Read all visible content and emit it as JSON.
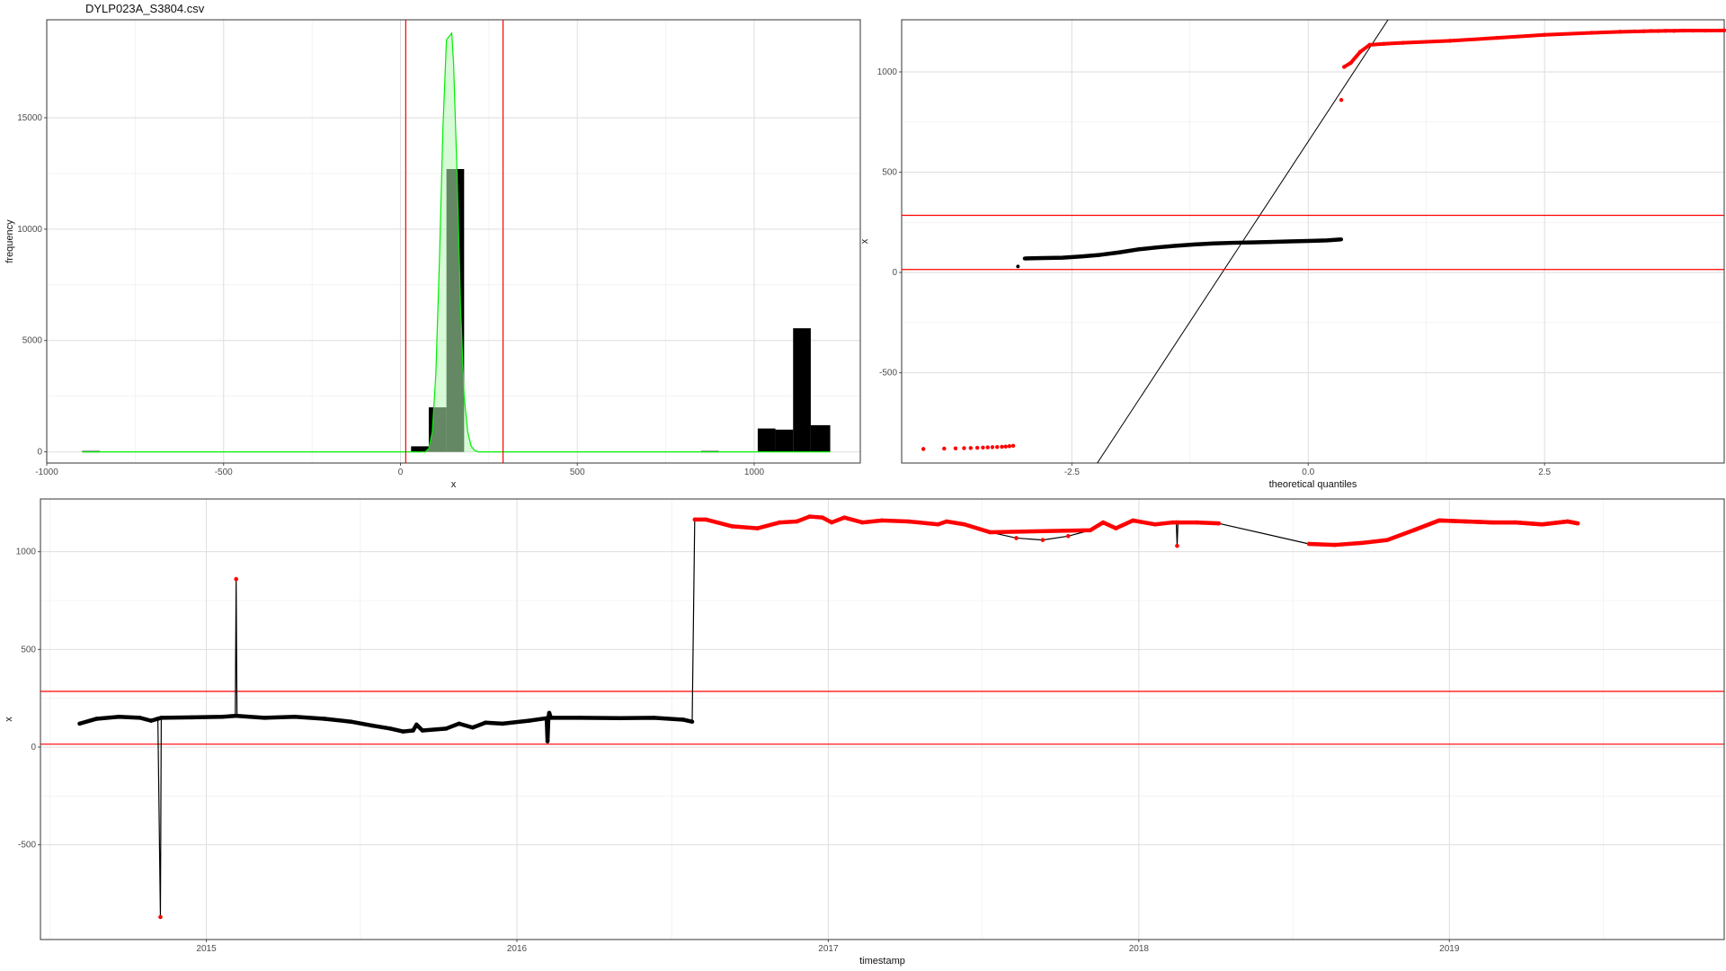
{
  "figure_title": "DYLP023A_S3804.csv",
  "colors": {
    "threshold": "#ff0000",
    "outlier": "#ff0000",
    "normal": "#000000",
    "density_line": "#00ee00",
    "density_fill": "#b6f5b6",
    "grid": "#dedede",
    "panel_border": "#333333"
  },
  "chart_data": [
    {
      "id": "histogram",
      "type": "bar",
      "title": "",
      "xlabel": "x",
      "ylabel": "frequency",
      "xlim": [
        -1000,
        1300
      ],
      "ylim": [
        -500,
        19400
      ],
      "x_ticks": [
        -1000,
        -500,
        0,
        500,
        1000
      ],
      "y_ticks": [
        0,
        5000,
        10000,
        15000
      ],
      "vlines": [
        15,
        290
      ],
      "bins": [
        {
          "x0": -900,
          "x1": -850,
          "count": 40
        },
        {
          "x0": 30,
          "x1": 80,
          "count": 250
        },
        {
          "x0": 80,
          "x1": 130,
          "count": 2000
        },
        {
          "x0": 130,
          "x1": 180,
          "count": 12700
        },
        {
          "x0": 850,
          "x1": 900,
          "count": 40
        },
        {
          "x0": 1010,
          "x1": 1060,
          "count": 1050
        },
        {
          "x0": 1060,
          "x1": 1110,
          "count": 1000
        },
        {
          "x0": 1110,
          "x1": 1160,
          "count": 5550
        },
        {
          "x0": 1160,
          "x1": 1215,
          "count": 1200
        }
      ],
      "density": [
        [
          -900,
          0
        ],
        [
          70,
          0
        ],
        [
          80,
          150
        ],
        [
          90,
          900
        ],
        [
          100,
          3500
        ],
        [
          110,
          8500
        ],
        [
          120,
          14500
        ],
        [
          130,
          18500
        ],
        [
          145,
          18800
        ],
        [
          150,
          17500
        ],
        [
          160,
          12500
        ],
        [
          170,
          6500
        ],
        [
          180,
          2500
        ],
        [
          190,
          900
        ],
        [
          200,
          250
        ],
        [
          210,
          60
        ],
        [
          220,
          0
        ],
        [
          1215,
          0
        ]
      ]
    },
    {
      "id": "qq-plot",
      "type": "scatter",
      "title": "",
      "xlabel": "theoretical quantiles",
      "ylabel": "x",
      "xlim": [
        -4.3,
        4.4
      ],
      "ylim": [
        -950,
        1260
      ],
      "x_ticks": [
        -2.5,
        0.0,
        2.5
      ],
      "x_tick_labels": [
        "-2.5",
        "0.0",
        "2.5"
      ],
      "y_ticks": [
        -500,
        0,
        500,
        1000
      ],
      "hlines": [
        15,
        285
      ],
      "reference_line": [
        [
          -2.3,
          -1000
        ],
        [
          0.9,
          1300
        ]
      ],
      "normal_series": [
        [
          -3.07,
          30
        ],
        [
          -3.0,
          70
        ],
        [
          -2.8,
          72
        ],
        [
          -2.6,
          74
        ],
        [
          -2.4,
          80
        ],
        [
          -2.2,
          88
        ],
        [
          -2.0,
          100
        ],
        [
          -1.8,
          115
        ],
        [
          -1.6,
          125
        ],
        [
          -1.4,
          133
        ],
        [
          -1.2,
          140
        ],
        [
          -1.0,
          145
        ],
        [
          -0.8,
          148
        ],
        [
          -0.6,
          150
        ],
        [
          -0.4,
          152
        ],
        [
          -0.2,
          155
        ],
        [
          0.0,
          157
        ],
        [
          0.2,
          160
        ],
        [
          0.35,
          165
        ]
      ],
      "outlier_series": [
        [
          -4.07,
          -880
        ],
        [
          -3.85,
          -878
        ],
        [
          -3.73,
          -877
        ],
        [
          -3.64,
          -876
        ],
        [
          -3.57,
          -875
        ],
        [
          -3.5,
          -874
        ],
        [
          -3.44,
          -873
        ],
        [
          -3.39,
          -872
        ],
        [
          -3.34,
          -871
        ],
        [
          -3.29,
          -870
        ],
        [
          -3.24,
          -869
        ],
        [
          -3.2,
          -868
        ],
        [
          -3.16,
          -866
        ],
        [
          -3.12,
          -864
        ],
        [
          0.35,
          860
        ],
        [
          0.38,
          1025
        ],
        [
          0.45,
          1045
        ],
        [
          0.55,
          1100
        ],
        [
          0.65,
          1135
        ],
        [
          0.8,
          1140
        ],
        [
          1.0,
          1145
        ],
        [
          1.5,
          1155
        ],
        [
          2.0,
          1170
        ],
        [
          2.5,
          1185
        ],
        [
          3.0,
          1195
        ],
        [
          3.3,
          1200
        ],
        [
          3.45,
          1202
        ],
        [
          3.55,
          1203
        ],
        [
          3.63,
          1204
        ],
        [
          3.7,
          1204
        ],
        [
          3.78,
          1205
        ],
        [
          3.87,
          1205
        ],
        [
          3.97,
          1206
        ],
        [
          4.07,
          1206
        ],
        [
          4.2,
          1206
        ],
        [
          4.4,
          1207
        ]
      ]
    },
    {
      "id": "time-series",
      "type": "line",
      "title": "",
      "xlabel": "timestamp",
      "ylabel": "x",
      "xlim": [
        "2014-06-20",
        "2019-11-20"
      ],
      "ylim": [
        -985,
        1270
      ],
      "x_ticks": [
        "2015-01-01",
        "2016-01-01",
        "2017-01-01",
        "2018-01-01",
        "2019-01-01"
      ],
      "x_tick_labels": [
        "2015",
        "2016",
        "2017",
        "2018",
        "2019"
      ],
      "y_ticks": [
        -500,
        0,
        500,
        1000
      ],
      "hlines": [
        15,
        285
      ],
      "series": [
        [
          "2014-08-05",
          120
        ],
        [
          "2014-08-25",
          145
        ],
        [
          "2014-09-20",
          155
        ],
        [
          "2014-10-15",
          150
        ],
        [
          "2014-10-28",
          135
        ],
        [
          "2014-11-05",
          145
        ],
        [
          "2014-11-08",
          -870
        ],
        [
          "2014-11-09",
          150
        ],
        [
          "2014-12-15",
          152
        ],
        [
          "2015-01-20",
          155
        ],
        [
          "2015-02-04",
          160
        ],
        [
          "2015-02-05",
          860
        ],
        [
          "2015-02-06",
          160
        ],
        [
          "2015-03-10",
          150
        ],
        [
          "2015-04-15",
          155
        ],
        [
          "2015-05-20",
          145
        ],
        [
          "2015-06-20",
          130
        ],
        [
          "2015-07-15",
          110
        ],
        [
          "2015-08-05",
          95
        ],
        [
          "2015-08-20",
          80
        ],
        [
          "2015-09-01",
          85
        ],
        [
          "2015-09-05",
          115
        ],
        [
          "2015-09-12",
          85
        ],
        [
          "2015-10-10",
          95
        ],
        [
          "2015-10-25",
          120
        ],
        [
          "2015-11-10",
          100
        ],
        [
          "2015-11-25",
          125
        ],
        [
          "2015-12-15",
          120
        ],
        [
          "2016-01-15",
          135
        ],
        [
          "2016-02-05",
          148
        ],
        [
          "2016-02-06",
          30
        ],
        [
          "2016-02-07",
          150
        ],
        [
          "2016-02-08",
          175
        ],
        [
          "2016-02-10",
          150
        ],
        [
          "2016-03-15",
          150
        ],
        [
          "2016-05-01",
          148
        ],
        [
          "2016-06-10",
          150
        ],
        [
          "2016-07-15",
          140
        ],
        [
          "2016-07-25",
          130
        ],
        [
          "2016-07-28",
          1165
        ],
        [
          "2016-08-10",
          1165
        ],
        [
          "2016-09-10",
          1130
        ],
        [
          "2016-10-10",
          1120
        ],
        [
          "2016-11-05",
          1150
        ],
        [
          "2016-11-25",
          1155
        ],
        [
          "2016-12-10",
          1180
        ],
        [
          "2016-12-25",
          1175
        ],
        [
          "2017-01-05",
          1150
        ],
        [
          "2017-01-20",
          1175
        ],
        [
          "2017-02-10",
          1150
        ],
        [
          "2017-03-05",
          1160
        ],
        [
          "2017-04-05",
          1155
        ],
        [
          "2017-05-10",
          1140
        ],
        [
          "2017-05-20",
          1155
        ],
        [
          "2017-06-10",
          1140
        ],
        [
          "2017-07-10",
          1100
        ],
        [
          "2017-08-10",
          1070
        ],
        [
          "2017-09-10",
          1060
        ],
        [
          "2017-10-10",
          1080
        ],
        [
          "2017-11-05",
          1110
        ],
        [
          "2017-11-20",
          1150
        ],
        [
          "2017-12-05",
          1120
        ],
        [
          "2017-12-25",
          1160
        ],
        [
          "2018-01-20",
          1140
        ],
        [
          "2018-02-10",
          1150
        ],
        [
          "2018-02-14",
          1150
        ],
        [
          "2018-02-15",
          1030
        ],
        [
          "2018-02-16",
          1150
        ],
        [
          "2018-03-10",
          1150
        ],
        [
          "2018-04-05",
          1145
        ],
        [
          "2018-07-20",
          1040
        ],
        [
          "2018-08-20",
          1035
        ],
        [
          "2018-09-20",
          1045
        ],
        [
          "2018-10-20",
          1060
        ],
        [
          "2018-11-20",
          1110
        ],
        [
          "2018-12-20",
          1160
        ],
        [
          "2019-01-20",
          1155
        ],
        [
          "2019-02-20",
          1150
        ],
        [
          "2019-03-20",
          1150
        ],
        [
          "2019-04-20",
          1140
        ],
        [
          "2019-05-20",
          1155
        ],
        [
          "2019-06-01",
          1145
        ]
      ],
      "outlier_segment_from": "2016-07-28"
    }
  ]
}
